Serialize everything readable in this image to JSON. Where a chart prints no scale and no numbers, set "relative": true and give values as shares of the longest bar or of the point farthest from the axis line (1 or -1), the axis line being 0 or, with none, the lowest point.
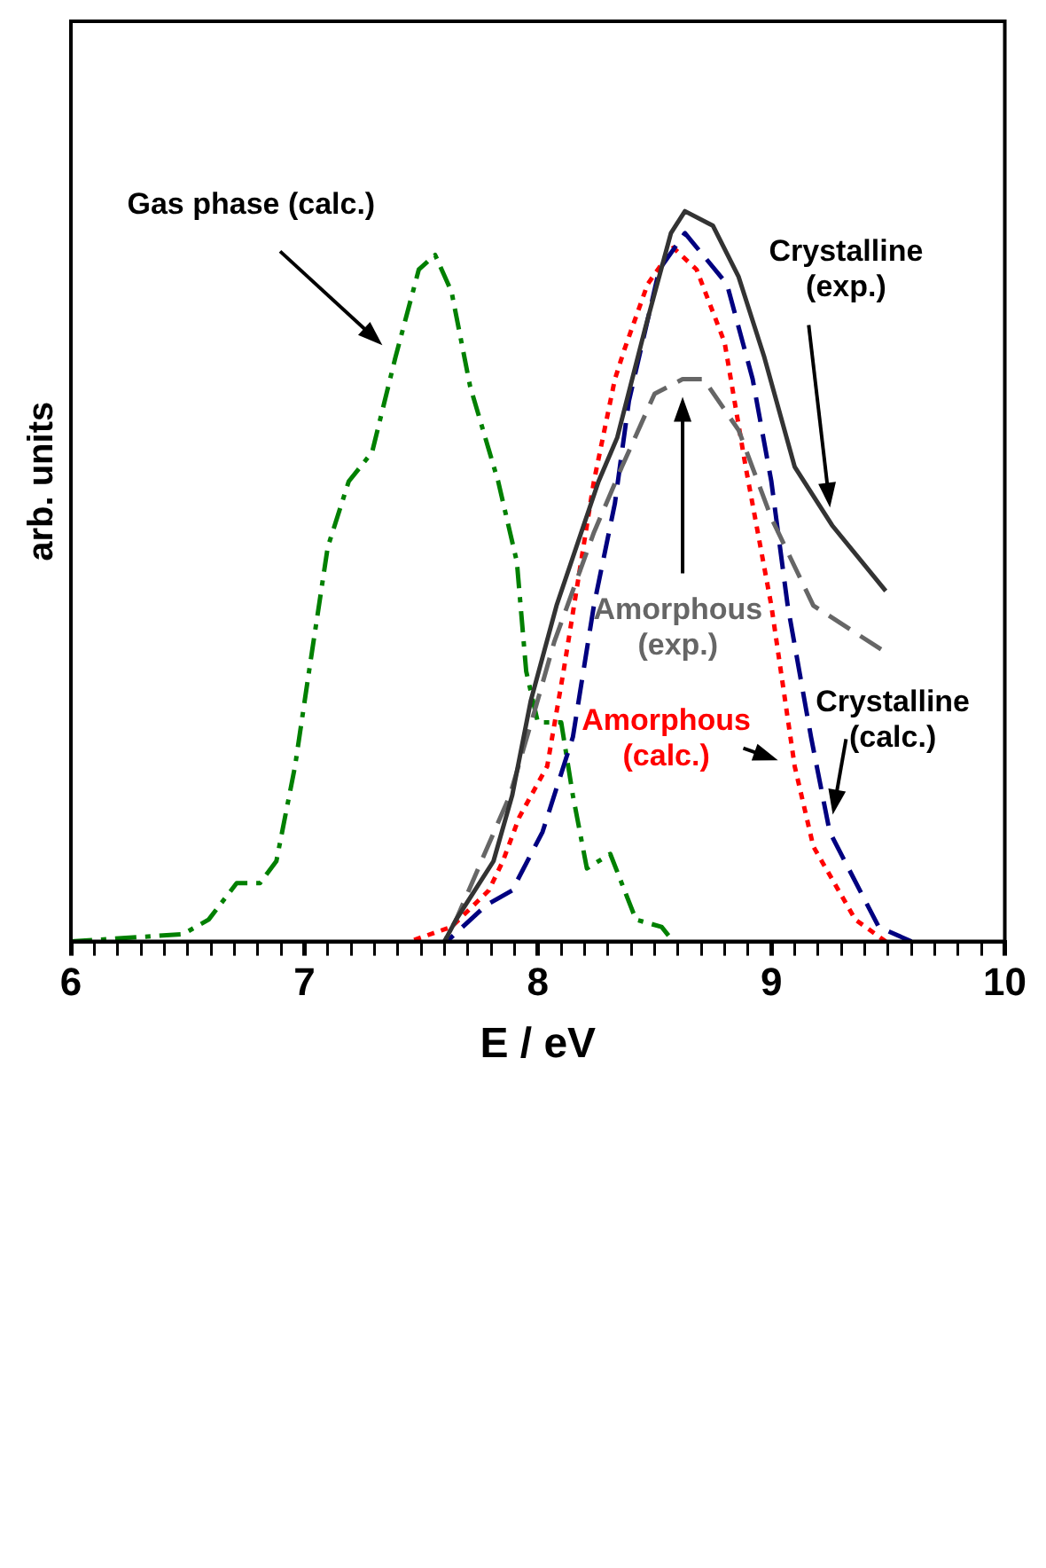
{
  "chart_data": {
    "type": "line",
    "relative": true,
    "xlabel": "E / eV",
    "ylabel": "arb. units",
    "xlim": [
      6,
      10
    ],
    "xticks": [
      6,
      {
        "value": 6.1,
        "label": null
      },
      {
        "value": 6.2,
        "label": null
      },
      {
        "value": 6.3,
        "label": null
      },
      {
        "value": 6.4,
        "label": null
      },
      {
        "value": 6.5,
        "label": null
      },
      {
        "value": 6.6,
        "label": null
      },
      {
        "value": 6.7,
        "label": null
      },
      {
        "value": 6.8,
        "label": null
      },
      {
        "value": 6.9,
        "label": null
      },
      7,
      {
        "value": 7.1,
        "label": null
      },
      {
        "value": 7.2,
        "label": null
      },
      {
        "value": 7.3,
        "label": null
      },
      {
        "value": 7.4,
        "label": null
      },
      {
        "value": 7.5,
        "label": null
      },
      {
        "value": 7.6,
        "label": null
      },
      {
        "value": 7.7,
        "label": null
      },
      {
        "value": 7.8,
        "label": null
      },
      {
        "value": 7.9,
        "label": null
      },
      8,
      {
        "value": 8.1,
        "label": null
      },
      {
        "value": 8.2,
        "label": null
      },
      {
        "value": 8.3,
        "label": null
      },
      {
        "value": 8.4,
        "label": null
      },
      {
        "value": 8.5,
        "label": null
      },
      {
        "value": 8.6,
        "label": null
      },
      {
        "value": 8.7,
        "label": null
      },
      {
        "value": 8.8,
        "label": null
      },
      {
        "value": 8.9,
        "label": null
      },
      9,
      {
        "value": 9.1,
        "label": null
      },
      {
        "value": 9.2,
        "label": null
      },
      {
        "value": 9.3,
        "label": null
      },
      {
        "value": 9.4,
        "label": null
      },
      {
        "value": 9.5,
        "label": null
      },
      {
        "value": 9.6,
        "label": null
      },
      {
        "value": 9.7,
        "label": null
      },
      {
        "value": 9.8,
        "label": null
      },
      {
        "value": 9.9,
        "label": null
      },
      10
    ],
    "legend": false,
    "grid": false,
    "series": [
      {
        "name": "Crystalline (exp.)",
        "color": "#333333",
        "line_style": "solid",
        "x": [
          9.49,
          9.26,
          9.1,
          8.97,
          8.86,
          8.75,
          8.63,
          8.57,
          8.46,
          8.34,
          8.26,
          8.08,
          7.97,
          7.89,
          7.81,
          7.65,
          7.6
        ],
        "values": [
          0.48,
          0.57,
          0.65,
          0.8,
          0.91,
          0.98,
          1.0,
          0.97,
          0.84,
          0.69,
          0.63,
          0.46,
          0.33,
          0.2,
          0.11,
          0.03,
          0
        ]
      },
      {
        "name": "Amorphous (exp.)",
        "color": "#666666",
        "line_style": "dashed",
        "x": [
          9.47,
          9.18,
          9.0,
          8.86,
          8.71,
          8.62,
          8.5,
          8.36,
          8.24,
          8.07,
          7.99,
          7.88,
          7.65,
          7.6
        ],
        "values": [
          0.4,
          0.46,
          0.58,
          0.7,
          0.77,
          0.77,
          0.75,
          0.65,
          0.56,
          0.41,
          0.32,
          0.2,
          0.03,
          0
        ]
      },
      {
        "name": "Crystalline (calc.)",
        "color": "#000080",
        "line_style": "dashed",
        "x": [
          9.6,
          9.46,
          9.25,
          9.17,
          9.07,
          9.0,
          8.92,
          8.81,
          8.63,
          8.52,
          8.39,
          8.33,
          8.24,
          8.15,
          8.02,
          7.89,
          7.78,
          7.61
        ],
        "values": [
          0,
          0.02,
          0.15,
          0.28,
          0.46,
          0.63,
          0.77,
          0.9,
          0.97,
          0.92,
          0.74,
          0.6,
          0.46,
          0.28,
          0.15,
          0.07,
          0.05,
          0
        ]
      },
      {
        "name": "Amorphous (calc.)",
        "color": "#ff0000",
        "line_style": "dotted",
        "x": [
          9.49,
          9.36,
          9.18,
          9.1,
          9.0,
          8.89,
          8.8,
          8.68,
          8.58,
          8.47,
          8.37,
          8.33,
          8.24,
          8.18,
          8.11,
          8.04,
          7.92,
          7.85,
          7.79,
          7.63,
          7.45
        ],
        "values": [
          0,
          0.03,
          0.13,
          0.24,
          0.46,
          0.65,
          0.82,
          0.92,
          0.95,
          0.9,
          0.81,
          0.77,
          0.63,
          0.51,
          0.37,
          0.24,
          0.17,
          0.11,
          0.07,
          0.02,
          0
        ]
      },
      {
        "name": "Gas phase (calc.)",
        "color": "#008000",
        "line_style": "dashdot",
        "x": [
          6.0,
          6.48,
          6.59,
          6.71,
          6.81,
          6.88,
          6.96,
          7.02,
          7.1,
          7.19,
          7.29,
          7.39,
          7.49,
          7.56,
          7.63,
          7.71,
          7.83,
          7.91,
          7.95,
          8.0,
          8.1,
          8.15,
          8.21,
          8.31,
          8.42,
          8.53,
          8.58
        ],
        "values": [
          0,
          0.01,
          0.03,
          0.08,
          0.08,
          0.11,
          0.24,
          0.37,
          0.54,
          0.63,
          0.67,
          0.8,
          0.92,
          0.94,
          0.89,
          0.76,
          0.63,
          0.52,
          0.37,
          0.3,
          0.3,
          0.2,
          0.1,
          0.12,
          0.03,
          0.02,
          0
        ]
      }
    ]
  }
}
